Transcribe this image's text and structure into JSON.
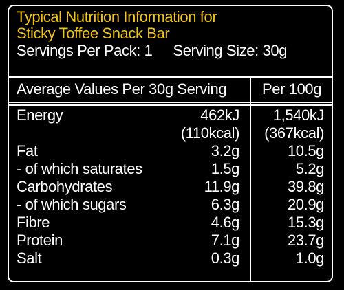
{
  "title_line1": "Typical Nutrition Information for",
  "title_line2": "Sticky Toffee Snack Bar",
  "servings_per_pack": "Servings Per Pack: 1",
  "serving_size": "Serving Size: 30g",
  "header_left": "Average Values Per 30g Serving",
  "header_right": "Per 100g",
  "rows": [
    {
      "label": "Energy",
      "per_serving": "462kJ",
      "per_100g": "1,540kJ"
    },
    {
      "label": "",
      "per_serving": "(110kcal)",
      "per_100g": "(367kcal)"
    },
    {
      "label": "Fat",
      "per_serving": "3.2g",
      "per_100g": "10.5g"
    },
    {
      "label": "- of which saturates",
      "per_serving": "1.5g",
      "per_100g": "5.2g"
    },
    {
      "label": "Carbohydrates",
      "per_serving": "11.9g",
      "per_100g": "39.8g"
    },
    {
      "label": "- of which sugars",
      "per_serving": "6.3g",
      "per_100g": "20.9g"
    },
    {
      "label": "Fibre",
      "per_serving": "4.6g",
      "per_100g": "15.3g"
    },
    {
      "label": "Protein",
      "per_serving": "7.1g",
      "per_100g": "23.7g"
    },
    {
      "label": "Salt",
      "per_serving": "0.3g",
      "per_100g": "1.0g"
    }
  ],
  "colors": {
    "background": "#000000",
    "text": "#ffffff",
    "title": "#f2c41c",
    "border": "#ffffff"
  }
}
